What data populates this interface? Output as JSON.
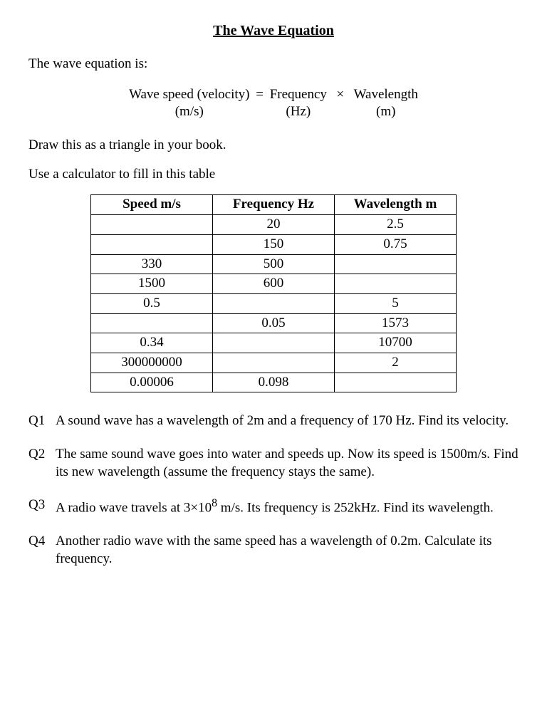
{
  "title": "The Wave Equation",
  "intro": "The wave equation is:",
  "equation": {
    "parts": [
      {
        "top": "Wave speed (velocity)",
        "bottom": "(m/s)"
      },
      {
        "sep": " = "
      },
      {
        "top": "Frequency",
        "bottom": "(Hz)"
      },
      {
        "sep": "  ×  "
      },
      {
        "top": "Wavelength",
        "bottom": "(m)"
      }
    ]
  },
  "instruction1": "Draw this as a triangle in your book.",
  "instruction2": "Use a calculator to fill in this table",
  "table": {
    "headers": [
      "Speed m/s",
      "Frequency Hz",
      "Wavelength m"
    ],
    "rows": [
      [
        "",
        "20",
        "2.5"
      ],
      [
        "",
        "150",
        "0.75"
      ],
      [
        "330",
        "500",
        ""
      ],
      [
        "1500",
        "600",
        ""
      ],
      [
        "0.5",
        "",
        "5"
      ],
      [
        "",
        "0.05",
        "1573"
      ],
      [
        "0.34",
        "",
        "10700"
      ],
      [
        "300000000",
        "",
        "2"
      ],
      [
        "0.00006",
        "0.098",
        ""
      ]
    ]
  },
  "questions": [
    {
      "label": "Q1",
      "text": "A sound wave has a wavelength of 2m and a frequency of 170 Hz. Find its velocity."
    },
    {
      "label": "Q2",
      "text": "The same sound wave goes into water and speeds up. Now its speed is 1500m/s. Find its new wavelength (assume the frequency stays the same)."
    },
    {
      "label": "Q3",
      "text_html": "A radio wave travels at 3×10<sup>8</sup> m/s. Its frequency is 252kHz. Find its wavelength."
    },
    {
      "label": "Q4",
      "text": "Another radio wave with the same speed has a wavelength of 0.2m. Calculate its frequency."
    }
  ]
}
